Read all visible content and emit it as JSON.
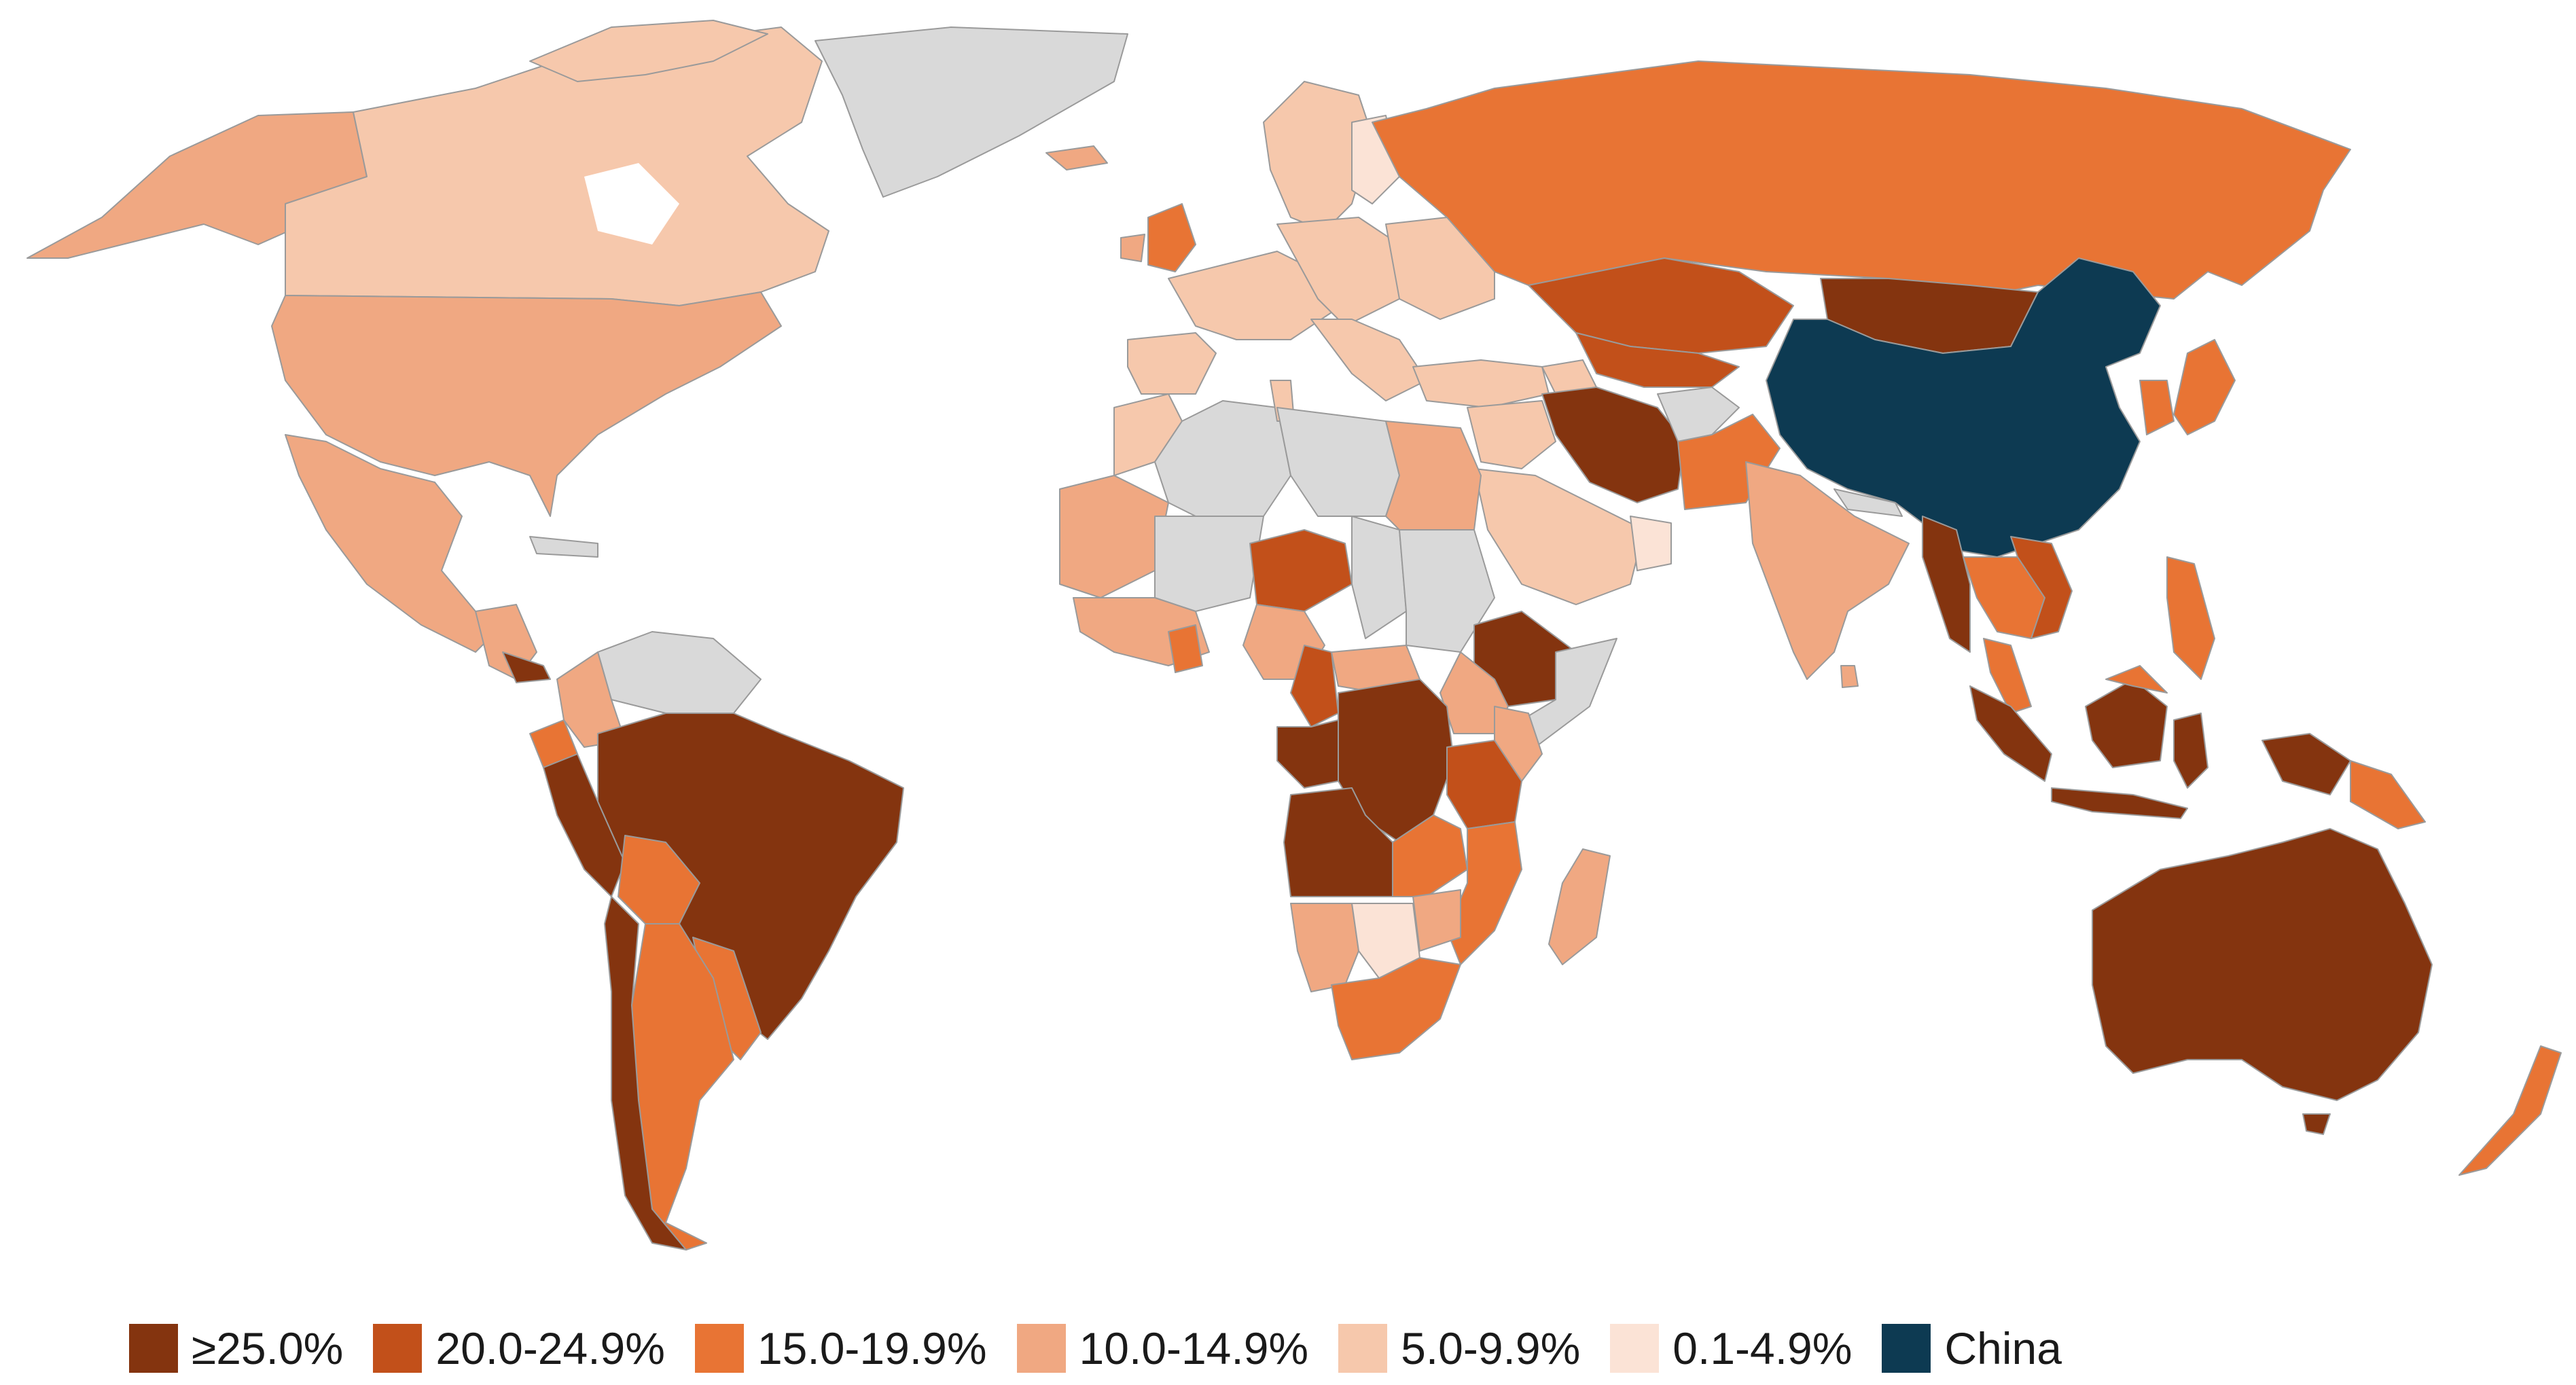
{
  "colors": {
    "c25": "#84340f",
    "c20": "#c2501a",
    "c15": "#e87434",
    "c10": "#f0a882",
    "c5": "#f6c8ac",
    "c0": "#fbe3d6",
    "china": "#0d3a52",
    "nodata": "#d9d9d9",
    "border": "#9a9a9a"
  },
  "legend": [
    {
      "label": "≥25.0%",
      "color": "#84340f"
    },
    {
      "label": "20.0-24.9%",
      "color": "#c2501a"
    },
    {
      "label": "15.0-19.9%",
      "color": "#e87434"
    },
    {
      "label": "10.0-14.9%",
      "color": "#f0a882"
    },
    {
      "label": "5.0-9.9%",
      "color": "#f6c8ac"
    },
    {
      "label": "0.1-4.9%",
      "color": "#fbe3d6"
    },
    {
      "label": "China",
      "color": "#0d3a52"
    }
  ]
}
